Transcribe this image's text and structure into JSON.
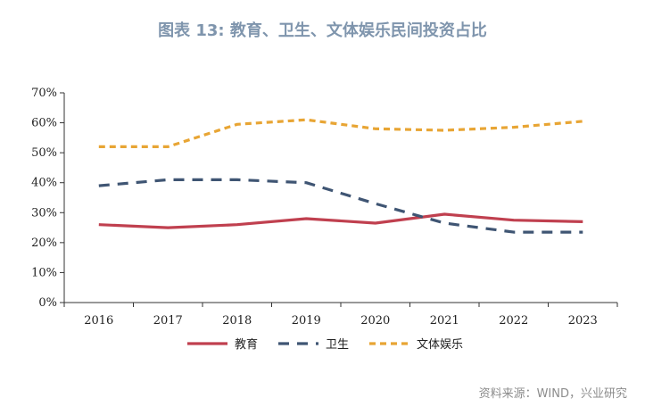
{
  "header": {
    "title": "图表 13: 教育、卫生、文体娱乐民间投资占比"
  },
  "source": "资料来源：WIND，兴业研究",
  "chart_data": {
    "type": "line",
    "title": "图表 13: 教育、卫生、文体娱乐民间投资占比",
    "x": [
      "2016",
      "2017",
      "2018",
      "2019",
      "2020",
      "2021",
      "2022",
      "2023"
    ],
    "ylim": [
      0,
      70
    ],
    "yticks": [
      "0%",
      "10%",
      "20%",
      "30%",
      "40%",
      "50%",
      "60%",
      "70%"
    ],
    "legend_position": "bottom",
    "series": [
      {
        "name": "教育",
        "color": "#c0404f",
        "style": "solid",
        "values": [
          26,
          25,
          26,
          28,
          26.5,
          29.5,
          27.5,
          27
        ]
      },
      {
        "name": "卫生",
        "color": "#3f5573",
        "style": "dashed",
        "values": [
          39,
          41,
          41,
          40,
          33,
          26.5,
          23.5,
          23.5
        ]
      },
      {
        "name": "文体娱乐",
        "color": "#e8a534",
        "style": "dotted",
        "values": [
          52,
          52,
          59.5,
          61,
          58,
          57.5,
          58.5,
          60.5
        ]
      }
    ]
  }
}
